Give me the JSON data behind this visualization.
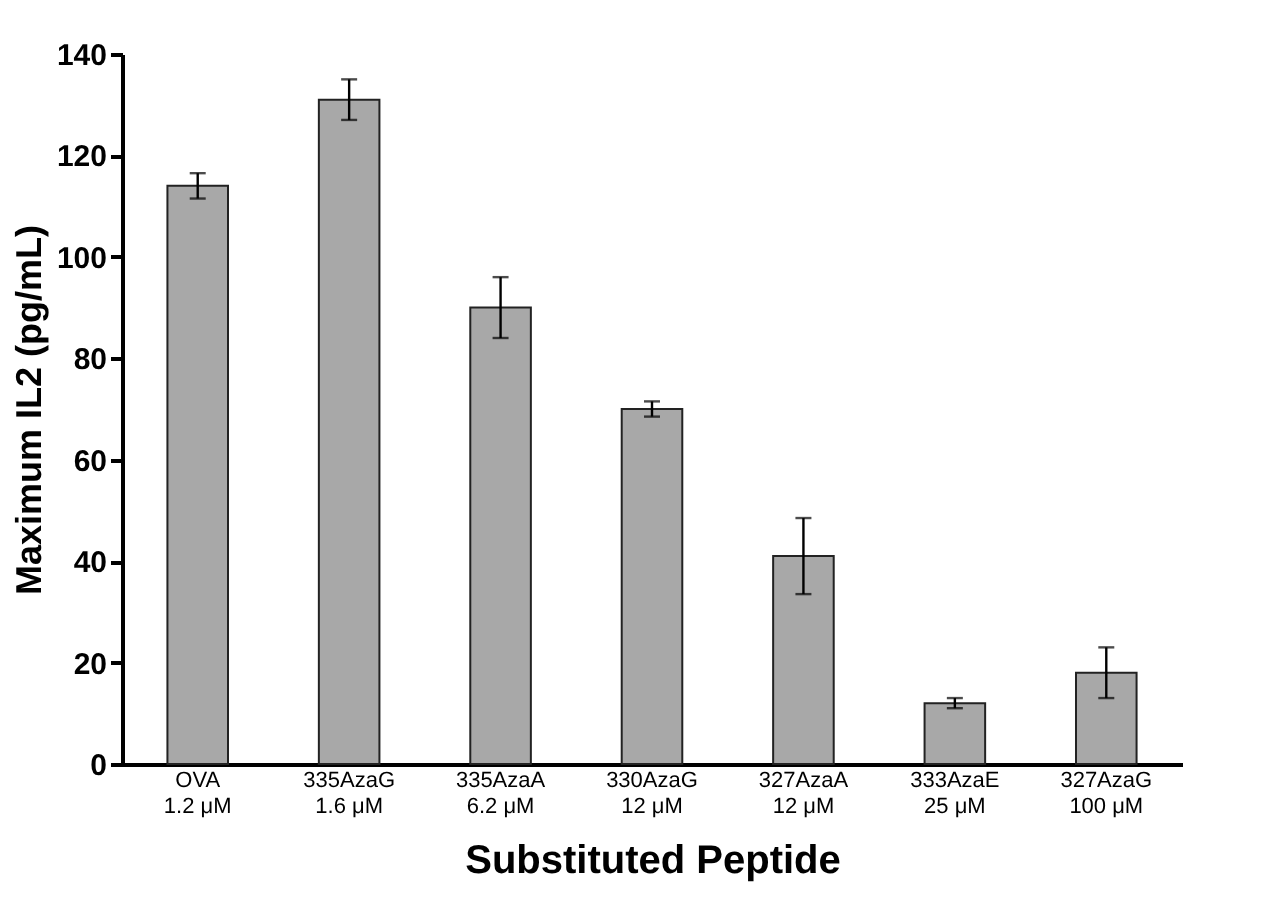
{
  "chart_data": {
    "type": "bar",
    "xlabel": "Substituted Peptide",
    "ylabel": "Maximum IL2 (pg/mL)",
    "categories": [
      "OVA\n1.2  μM",
      "335AzaG\n1.6  μM",
      "335AzaA\n6.2  μM",
      "330AzaG\n12  μM",
      "327AzaA\n12  μM",
      "333AzaE\n25  μM",
      "327AzaG\n100  μM"
    ],
    "values": [
      114,
      131,
      90,
      70,
      41,
      12,
      18
    ],
    "errors": [
      2.5,
      4,
      6,
      1.5,
      7.5,
      1,
      5
    ],
    "color": "#a8a8a8",
    "ylim": [
      0,
      140
    ],
    "yticks": [
      0,
      20,
      40,
      60,
      80,
      100,
      120,
      140
    ],
    "grid": false
  }
}
